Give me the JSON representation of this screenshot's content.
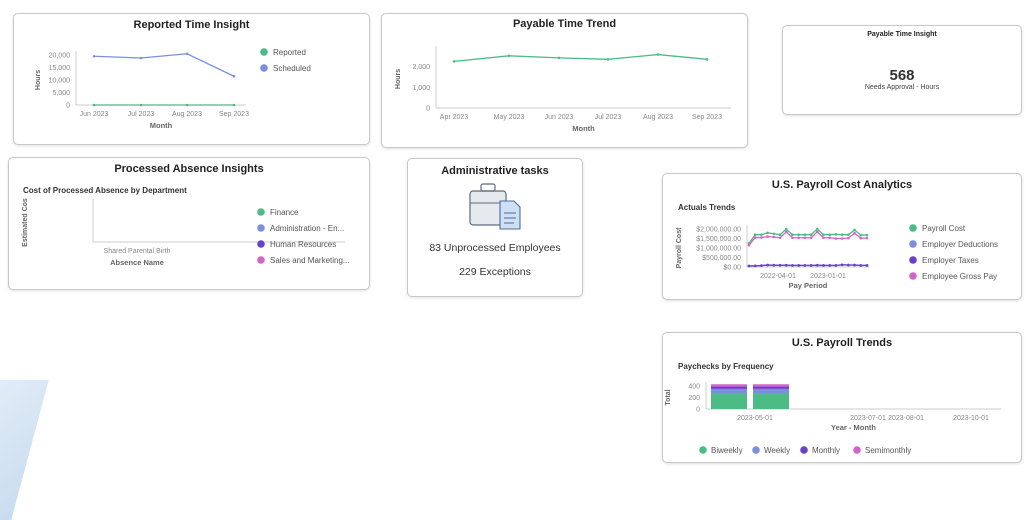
{
  "colors": {
    "green": "#4cbb84",
    "blue": "#7b8fe0",
    "purple": "#6a3fc9",
    "pink": "#d264c8",
    "axis": "#999",
    "text": "#888"
  },
  "reported_time": {
    "title": "Reported Time Insight"
  },
  "payable_trend": {
    "title": "Payable Time Trend"
  },
  "payable_kpi": {
    "title": "Payable Time Insight",
    "value": "568",
    "caption": "Needs Approval - Hours"
  },
  "absence": {
    "title": "Processed Absence Insights",
    "subtitle": "Cost of Processed Absence by Department"
  },
  "admin": {
    "title": "Administrative tasks",
    "icon": "briefcase-document-icon",
    "unprocessed": "83 Unprocessed Employees",
    "exceptions": "229 Exceptions"
  },
  "payroll_cost": {
    "title": "U.S. Payroll Cost Analytics",
    "subtitle": "Actuals Trends"
  },
  "payroll_trends": {
    "title": "U.S. Payroll Trends",
    "subtitle": "Paychecks by Frequency"
  },
  "chart_data": [
    {
      "id": "reported",
      "type": "line",
      "xlabel": "Month",
      "ylabel": "Hours",
      "categories": [
        "Jun 2023",
        "Jul 2023",
        "Aug 2023",
        "Sep 2023"
      ],
      "yticks": [
        "0",
        "5,000",
        "10,000",
        "15,000",
        "20,000"
      ],
      "ylim": [
        0,
        20000
      ],
      "legend": "right",
      "series": [
        {
          "name": "Reported",
          "color": "#4cbb84",
          "values": [
            0,
            0,
            0,
            0
          ]
        },
        {
          "name": "Scheduled",
          "color": "#7b8fe0",
          "values": [
            19500,
            18800,
            20500,
            11500
          ]
        }
      ]
    },
    {
      "id": "payable",
      "type": "line",
      "xlabel": "Month",
      "ylabel": "Hours",
      "categories": [
        "Apr 2023",
        "May 2023",
        "Jun 2023",
        "Jul 2023",
        "Aug 2023",
        "Sep 2023"
      ],
      "yticks": [
        "0",
        "1,000",
        "2,000"
      ],
      "ylim": [
        0,
        2800
      ],
      "series": [
        {
          "color": "#4cbb84",
          "values": [
            2250,
            2520,
            2420,
            2350,
            2580,
            2350
          ]
        }
      ]
    },
    {
      "id": "absence",
      "type": "bar",
      "xlabel": "Absence Name",
      "ylabel": "Estimated Cos",
      "categories": [
        "Shared Parental Birth"
      ],
      "legend": "right",
      "series": [
        {
          "name": "Finance",
          "color": "#4cbb84"
        },
        {
          "name": "Administration - En...",
          "color": "#7b8fe0"
        },
        {
          "name": "Human Resources",
          "color": "#6a3fc9"
        },
        {
          "name": "Sales and Marketing...",
          "color": "#d264c8"
        }
      ]
    },
    {
      "id": "payrollcost",
      "type": "line",
      "xlabel": "Pay Period",
      "ylabel": "Payroll Cost",
      "xticks": [
        "2022-04-01",
        "2023-01-01"
      ],
      "yticks": [
        "$0.00",
        "$500,000.00",
        "$1,000,000.00",
        "$1,500,000.00",
        "$2,000,000.00"
      ],
      "ylim": [
        0,
        2000000
      ],
      "legend": "right",
      "series": [
        {
          "name": "Payroll Cost",
          "color": "#4cbb84",
          "values": [
            1250000,
            1700000,
            1700000,
            1800000,
            1750000,
            1700000,
            2000000,
            1700000,
            1700000,
            1700000,
            1700000,
            2000000,
            1700000,
            1700000,
            1720000,
            1700000,
            1700000,
            1950000,
            1680000,
            1680000
          ]
        },
        {
          "name": "Employer Deductions",
          "color": "#7b8fe0",
          "values": [
            60000,
            70000,
            80000,
            110000,
            100000,
            100000,
            100000,
            90000,
            90000,
            90000,
            90000,
            100000,
            90000,
            90000,
            90000,
            120000,
            110000,
            110000,
            90000,
            90000
          ]
        },
        {
          "name": "Employer Taxes",
          "color": "#6a3fc9",
          "values": [
            50000,
            60000,
            70000,
            100000,
            90000,
            90000,
            90000,
            80000,
            80000,
            80000,
            80000,
            90000,
            80000,
            80000,
            80000,
            110000,
            100000,
            100000,
            80000,
            80000
          ]
        },
        {
          "name": "Employee Gross Pay",
          "color": "#d264c8",
          "values": [
            1150000,
            1550000,
            1550000,
            1600000,
            1580000,
            1540000,
            1850000,
            1540000,
            1540000,
            1540000,
            1540000,
            1850000,
            1540000,
            1540000,
            1500000,
            1500000,
            1520000,
            1780000,
            1520000,
            1520000
          ]
        }
      ]
    },
    {
      "id": "paychecks",
      "type": "bar",
      "stacked": true,
      "xlabel": "Year - Month",
      "ylabel": "Total",
      "xticks": [
        "2023-05-01",
        "2023-07-01",
        "2023-08-01",
        "2023-10-01"
      ],
      "yticks": [
        "0",
        "200",
        "400"
      ],
      "ylim": [
        0,
        400
      ],
      "legend": "bottom",
      "series": [
        {
          "name": "Biweekly",
          "color": "#4cbb84",
          "values": [
            270,
            270
          ]
        },
        {
          "name": "Weekly",
          "color": "#7b8fe0",
          "values": [
            80,
            80
          ]
        },
        {
          "name": "Monthly",
          "color": "#6a3fc9",
          "values": [
            40,
            40
          ]
        },
        {
          "name": "Semimonthly",
          "color": "#d264c8",
          "values": [
            40,
            40
          ]
        }
      ]
    }
  ]
}
